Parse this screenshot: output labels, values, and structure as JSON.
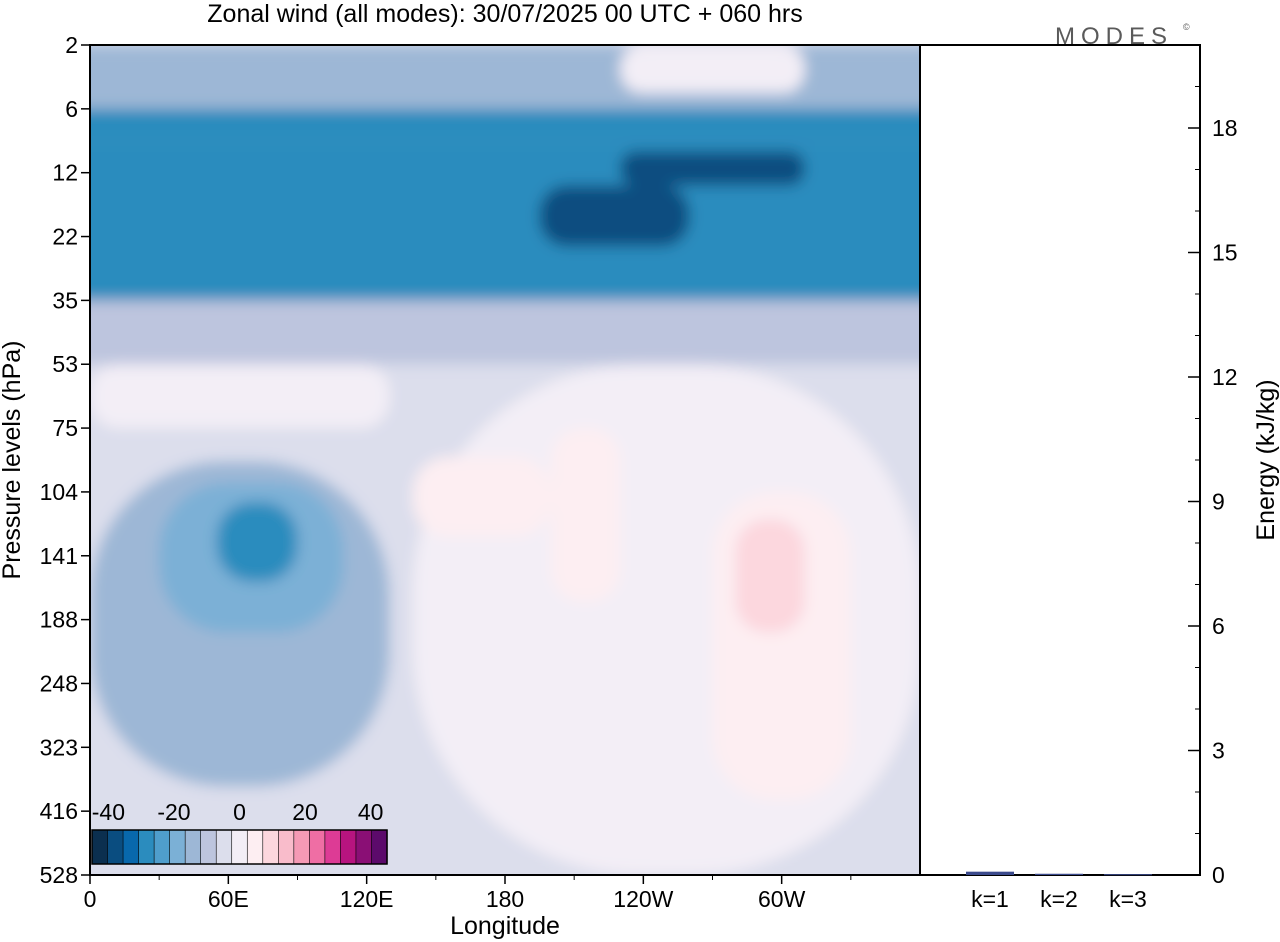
{
  "header": {
    "title": "Zonal wind (all modes):  30/07/2025  00 UTC  + 060 hrs",
    "logo_text": "MODES",
    "logo_mark": "©"
  },
  "chart_data": [
    {
      "type": "heatmap",
      "xlabel": "Longitude",
      "ylabel": "Pressure levels (hPa)",
      "x_ticks": [
        "0",
        "60E",
        "120E",
        "180",
        "120W",
        "60W"
      ],
      "x_tick_degrees": [
        0,
        60,
        120,
        180,
        240,
        300
      ],
      "xlim_degrees": [
        0,
        360
      ],
      "y_ticks": [
        "2",
        "6",
        "12",
        "22",
        "35",
        "53",
        "75",
        "104",
        "141",
        "188",
        "248",
        "323",
        "416",
        "528"
      ],
      "y_scale": "model levels, top at 2 hPa, bottom at 528 hPa",
      "colorbar": {
        "labels": [
          "-40",
          "-20",
          "0",
          "20",
          "40"
        ],
        "label_values": [
          -40,
          -20,
          0,
          20,
          40
        ],
        "levels": [
          -45,
          -40,
          -35,
          -30,
          -25,
          -20,
          -15,
          -10,
          -5,
          0,
          5,
          10,
          15,
          20,
          25,
          30,
          35,
          40,
          45
        ],
        "colors": [
          "#0b2f4f",
          "#0a4d80",
          "#0868ac",
          "#2b8cbe",
          "#4f9ecc",
          "#7bb0d6",
          "#9db7d6",
          "#bdc5de",
          "#dcdeec",
          "#f3eef6",
          "#fdeef2",
          "#fcd7de",
          "#f9bccb",
          "#f59ab5",
          "#ef6ea4",
          "#dd3b95",
          "#b7147f",
          "#8a0f75",
          "#5c0a6b"
        ]
      },
      "regions": [
        {
          "lon": [
            0,
            360
          ],
          "p": [
            2,
            6
          ],
          "value": -12
        },
        {
          "lon": [
            230,
            310
          ],
          "p": [
            2,
            5
          ],
          "value": 2
        },
        {
          "lon": [
            0,
            360
          ],
          "p": [
            6,
            9
          ],
          "value": -26
        },
        {
          "lon": [
            0,
            360
          ],
          "p": [
            9,
            35
          ],
          "value": -30
        },
        {
          "lon": [
            230,
            310
          ],
          "p": [
            10,
            14
          ],
          "value": -37
        },
        {
          "lon": [
            195,
            260
          ],
          "p": [
            14,
            24
          ],
          "value": -37
        },
        {
          "lon": [
            0,
            360
          ],
          "p": [
            35,
            53
          ],
          "value": -10
        },
        {
          "lon": [
            0,
            360
          ],
          "p": [
            53,
            528
          ],
          "value": -2
        },
        {
          "lon": [
            0,
            130
          ],
          "p": [
            53,
            75
          ],
          "value": 2
        },
        {
          "lon": [
            140,
            360
          ],
          "p": [
            53,
            528
          ],
          "value": 3
        },
        {
          "lon": [
            140,
            200
          ],
          "p": [
            88,
            130
          ],
          "value": 7
        },
        {
          "lon": [
            200,
            230
          ],
          "p": [
            75,
            175
          ],
          "value": 7
        },
        {
          "lon": [
            270,
            330
          ],
          "p": [
            104,
            400
          ],
          "value": 8
        },
        {
          "lon": [
            280,
            310
          ],
          "p": [
            120,
            200
          ],
          "value": 14
        },
        {
          "lon": [
            0,
            130
          ],
          "p": [
            90,
            380
          ],
          "value": -12
        },
        {
          "lon": [
            30,
            110
          ],
          "p": [
            100,
            200
          ],
          "value": -20
        },
        {
          "lon": [
            55,
            90
          ],
          "p": [
            110,
            160
          ],
          "value": -28
        }
      ]
    },
    {
      "type": "bar",
      "categories": [
        "k=1",
        "k=2",
        "k=3"
      ],
      "values": [
        0.08,
        0.03,
        0.02
      ],
      "ylabel": "Energy (kJ/kg)",
      "ylim": [
        0,
        20
      ],
      "y_ticks": [
        "0",
        "3",
        "6",
        "9",
        "12",
        "15",
        "18"
      ],
      "y_tick_values": [
        0,
        3,
        6,
        9,
        12,
        15,
        18
      ],
      "bar_color": "#3b4a8c"
    }
  ]
}
